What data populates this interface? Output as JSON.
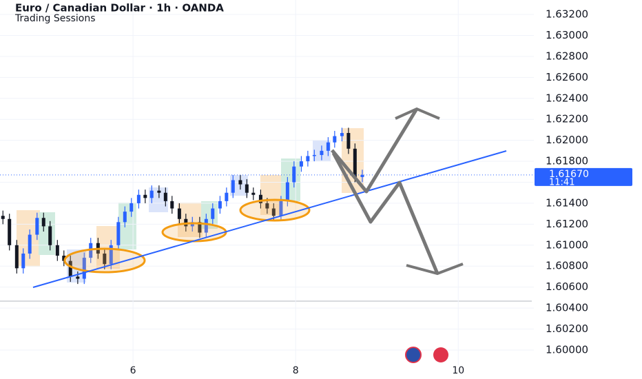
{
  "chart_data": {
    "type": "candlestick",
    "title": "Euro / Canadian Dollar · 1h · OANDA",
    "subtitle": "Trading Sessions",
    "up_color": "#2962ff",
    "down_color": "#131722",
    "x": [
      4.4,
      4.48,
      4.57,
      4.65,
      4.73,
      4.82,
      4.9,
      4.98,
      5.07,
      5.15,
      5.23,
      5.32,
      5.4,
      5.48,
      5.57,
      5.65,
      5.73,
      5.82,
      5.9,
      5.98,
      6.07,
      6.15,
      6.23,
      6.32,
      6.4,
      6.48,
      6.57,
      6.65,
      6.73,
      6.82,
      6.9,
      6.98,
      7.07,
      7.15,
      7.23,
      7.32,
      7.4,
      7.48,
      7.57,
      7.65,
      7.73,
      7.82,
      7.9,
      7.98,
      8.07,
      8.15,
      8.23,
      8.32,
      8.4,
      8.48,
      8.57,
      8.65,
      8.73,
      8.82
    ],
    "open": [
      1.6128,
      1.6125,
      1.61,
      1.6078,
      1.6092,
      1.611,
      1.6126,
      1.6118,
      1.61,
      1.609,
      1.6085,
      1.607,
      1.6068,
      1.6088,
      1.6102,
      1.6092,
      1.6082,
      1.61,
      1.6122,
      1.6132,
      1.614,
      1.6148,
      1.6145,
      1.6152,
      1.615,
      1.6142,
      1.6135,
      1.6125,
      1.6118,
      1.6122,
      1.6112,
      1.6125,
      1.6135,
      1.6142,
      1.615,
      1.6162,
      1.6158,
      1.615,
      1.6148,
      1.614,
      1.6135,
      1.6128,
      1.6142,
      1.616,
      1.6175,
      1.618,
      1.6185,
      1.6186,
      1.619,
      1.6198,
      1.6204,
      1.6207,
      1.6192,
      1.6165
    ],
    "high": [
      1.6133,
      1.613,
      1.6105,
      1.6097,
      1.6115,
      1.6131,
      1.6131,
      1.6123,
      1.6105,
      1.6095,
      1.609,
      1.6075,
      1.6093,
      1.6107,
      1.6107,
      1.6097,
      1.6105,
      1.6127,
      1.6137,
      1.6145,
      1.6153,
      1.6153,
      1.6157,
      1.6157,
      1.6155,
      1.6147,
      1.614,
      1.613,
      1.6127,
      1.6127,
      1.613,
      1.614,
      1.6147,
      1.6155,
      1.6167,
      1.6167,
      1.6163,
      1.6155,
      1.6153,
      1.6145,
      1.614,
      1.6147,
      1.6165,
      1.618,
      1.6185,
      1.619,
      1.6191,
      1.6195,
      1.6203,
      1.6209,
      1.6212,
      1.6212,
      1.6197,
      1.6172
    ],
    "low": [
      1.612,
      1.6095,
      1.6073,
      1.6073,
      1.6087,
      1.6105,
      1.6113,
      1.6095,
      1.6085,
      1.608,
      1.6065,
      1.6063,
      1.6063,
      1.6083,
      1.6087,
      1.6077,
      1.6077,
      1.6095,
      1.6117,
      1.6127,
      1.6135,
      1.614,
      1.614,
      1.6145,
      1.6137,
      1.613,
      1.612,
      1.6113,
      1.6113,
      1.6107,
      1.6107,
      1.612,
      1.613,
      1.6137,
      1.6145,
      1.6153,
      1.6145,
      1.6143,
      1.6135,
      1.613,
      1.6123,
      1.6123,
      1.6137,
      1.6155,
      1.617,
      1.6175,
      1.618,
      1.6181,
      1.6185,
      1.6193,
      1.6199,
      1.6187,
      1.616,
      1.616
    ],
    "close": [
      1.6125,
      1.61,
      1.6078,
      1.6092,
      1.611,
      1.6126,
      1.6118,
      1.61,
      1.609,
      1.6085,
      1.607,
      1.6068,
      1.6088,
      1.6102,
      1.6092,
      1.6082,
      1.61,
      1.6122,
      1.6132,
      1.614,
      1.6148,
      1.6145,
      1.6152,
      1.615,
      1.6142,
      1.6135,
      1.6125,
      1.6118,
      1.6122,
      1.6112,
      1.6125,
      1.6135,
      1.6142,
      1.615,
      1.6162,
      1.6158,
      1.615,
      1.6148,
      1.614,
      1.6135,
      1.6128,
      1.6142,
      1.616,
      1.6175,
      1.618,
      1.6185,
      1.6186,
      1.619,
      1.6198,
      1.6204,
      1.6207,
      1.6192,
      1.6165,
      1.6167
    ],
    "xlim": [
      4.364,
      10.93
    ],
    "xticks": [
      6,
      8,
      10
    ],
    "ylim": [
      1.59724,
      1.63338
    ],
    "yticks": [
      {
        "value": 1.6,
        "label": "1.60000"
      },
      {
        "value": 1.602,
        "label": "1.60200"
      },
      {
        "value": 1.604,
        "label": "1.60400"
      },
      {
        "value": 1.606,
        "label": "1.60600"
      },
      {
        "value": 1.608,
        "label": "1.60800"
      },
      {
        "value": 1.61,
        "label": "1.61000"
      },
      {
        "value": 1.612,
        "label": "1.61200"
      },
      {
        "value": 1.614,
        "label": "1.61400"
      },
      {
        "value": 1.616,
        "label": "1.61600"
      },
      {
        "value": 1.618,
        "label": "1.61800"
      },
      {
        "value": 1.62,
        "label": "1.62000"
      },
      {
        "value": 1.622,
        "label": "1.62200"
      },
      {
        "value": 1.624,
        "label": "1.62400"
      },
      {
        "value": 1.626,
        "label": "1.62600"
      },
      {
        "value": 1.628,
        "label": "1.62800"
      },
      {
        "value": 1.63,
        "label": "1.63000"
      },
      {
        "value": 1.632,
        "label": "1.63200"
      }
    ],
    "last_price": {
      "value": 1.6167,
      "label": "1.61670"
    },
    "countdown": "11:41",
    "grid": true
  }
}
